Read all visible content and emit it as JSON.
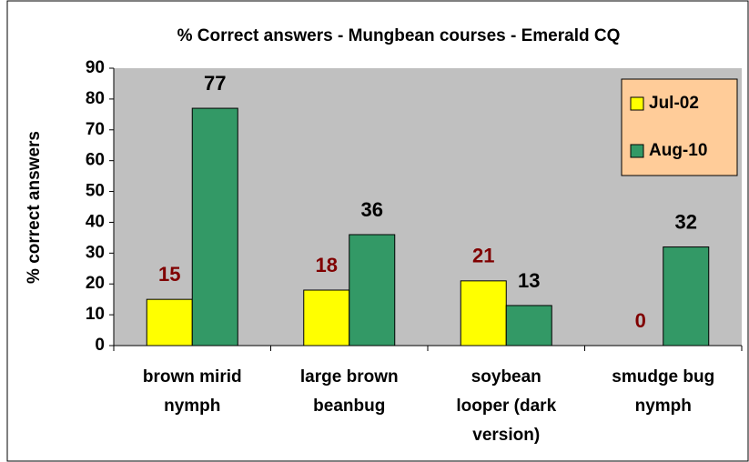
{
  "chart_data": {
    "type": "bar",
    "title": "% Correct answers - Mungbean courses - Emerald CQ",
    "y_label": "% correct answers",
    "categories": [
      [
        "brown mirid",
        "nymph"
      ],
      [
        "large brown",
        "beanbug"
      ],
      [
        "soybean",
        "looper (dark",
        "version)"
      ],
      [
        "smudge bug",
        "nymph"
      ]
    ],
    "series": [
      {
        "name": "Jul-02",
        "color": "#ffff00",
        "label_color": "#800000",
        "values": [
          15,
          18,
          21,
          0
        ]
      },
      {
        "name": "Aug-10",
        "color": "#339966",
        "label_color": "#000000",
        "values": [
          77,
          36,
          13,
          32
        ]
      }
    ],
    "ylim": [
      0,
      90
    ],
    "yticks": [
      0,
      10,
      20,
      30,
      40,
      50,
      60,
      70,
      80,
      90
    ],
    "legend": "top-right"
  }
}
